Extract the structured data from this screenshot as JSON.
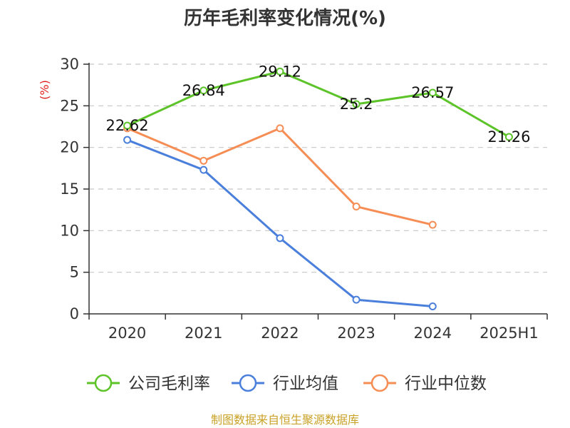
{
  "chart_data": {
    "type": "line",
    "title": "历年毛利率变化情况(%)",
    "ylabel": "(%)",
    "xlabel": "",
    "categories": [
      "2020",
      "2021",
      "2022",
      "2023",
      "2024",
      "2025H1"
    ],
    "ylim": [
      0,
      30
    ],
    "yticks": [
      0,
      5,
      10,
      15,
      20,
      25,
      30
    ],
    "grid": true,
    "legend_position": "bottom",
    "series": [
      {
        "name": "公司毛利率",
        "color": "#5cc328",
        "values": [
          22.62,
          26.84,
          29.12,
          25.2,
          26.57,
          21.26
        ],
        "labels": [
          "22.62",
          "26.84",
          "29.12",
          "25.2",
          "26.57",
          "21.26"
        ]
      },
      {
        "name": "行业均值",
        "color": "#4a7fdb",
        "values": [
          20.9,
          17.3,
          9.1,
          1.7,
          0.9,
          null
        ]
      },
      {
        "name": "行业中位数",
        "color": "#f58d55",
        "values": [
          22.3,
          18.4,
          22.3,
          12.9,
          10.7,
          null
        ]
      }
    ]
  },
  "source": "制图数据来自恒生聚源数据库"
}
